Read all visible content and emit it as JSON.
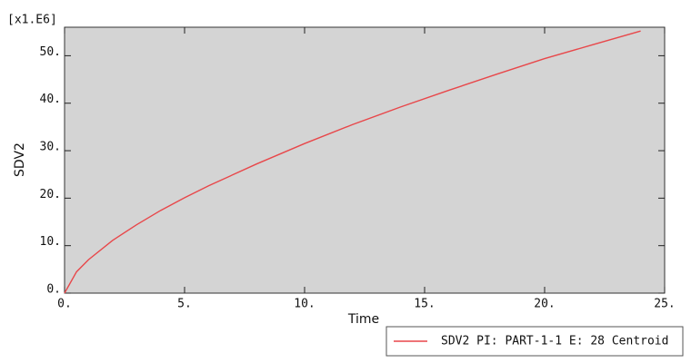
{
  "chart_data": {
    "type": "line",
    "x_label": "Time",
    "y_label": "SDV2",
    "y_multiplier": "[x1.E6]",
    "x": [
      0,
      0.5,
      1,
      2,
      3,
      4,
      5,
      6,
      8,
      10,
      12,
      14,
      16,
      18,
      20,
      22,
      24
    ],
    "series": [
      {
        "name": "SDV2 PI: PART-1-1 E: 28 Centroid",
        "color": "#e8474a",
        "values": [
          0,
          4.5,
          7.05,
          11.1,
          14.4,
          17.4,
          20.1,
          22.6,
          27.2,
          31.5,
          35.5,
          39.2,
          42.7,
          46.1,
          49.4,
          52.3,
          55.2
        ]
      }
    ],
    "xlim": [
      0,
      25
    ],
    "xticks": [
      {
        "value": 0,
        "label": "0."
      },
      {
        "value": 5,
        "label": "5."
      },
      {
        "value": 10,
        "label": "10."
      },
      {
        "value": 15,
        "label": "15."
      },
      {
        "value": 20,
        "label": "20."
      },
      {
        "value": 25,
        "label": "25."
      }
    ],
    "ylim": [
      0,
      56
    ],
    "yticks": [
      {
        "value": 0,
        "label": "0."
      },
      {
        "value": 10,
        "label": "10."
      },
      {
        "value": 20,
        "label": "20."
      },
      {
        "value": 30,
        "label": "30."
      },
      {
        "value": 40,
        "label": "40."
      },
      {
        "value": 50,
        "label": "50."
      }
    ],
    "plot_background": "#d4d4d4"
  }
}
